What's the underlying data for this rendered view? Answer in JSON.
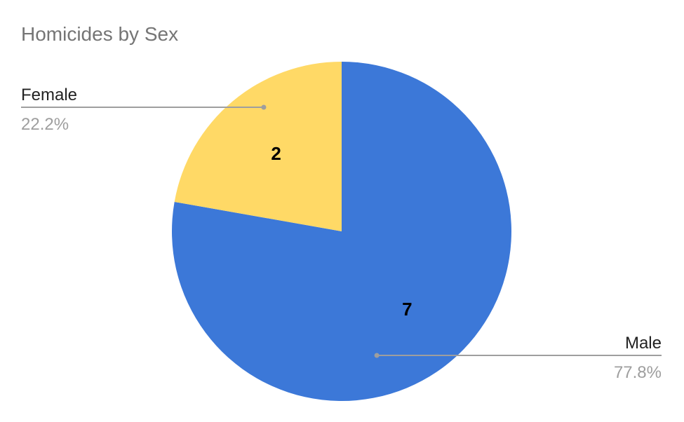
{
  "chart_data": {
    "type": "pie",
    "title": "Homicides by Sex",
    "categories": [
      "Male",
      "Female"
    ],
    "values": [
      7,
      2
    ],
    "percent_labels": [
      "77.8%",
      "22.2%"
    ],
    "colors": [
      "#3c78d8",
      "#ffd966"
    ],
    "start_angle_deg": 0,
    "direction": "clockwise",
    "legend": "labeled leader lines"
  }
}
